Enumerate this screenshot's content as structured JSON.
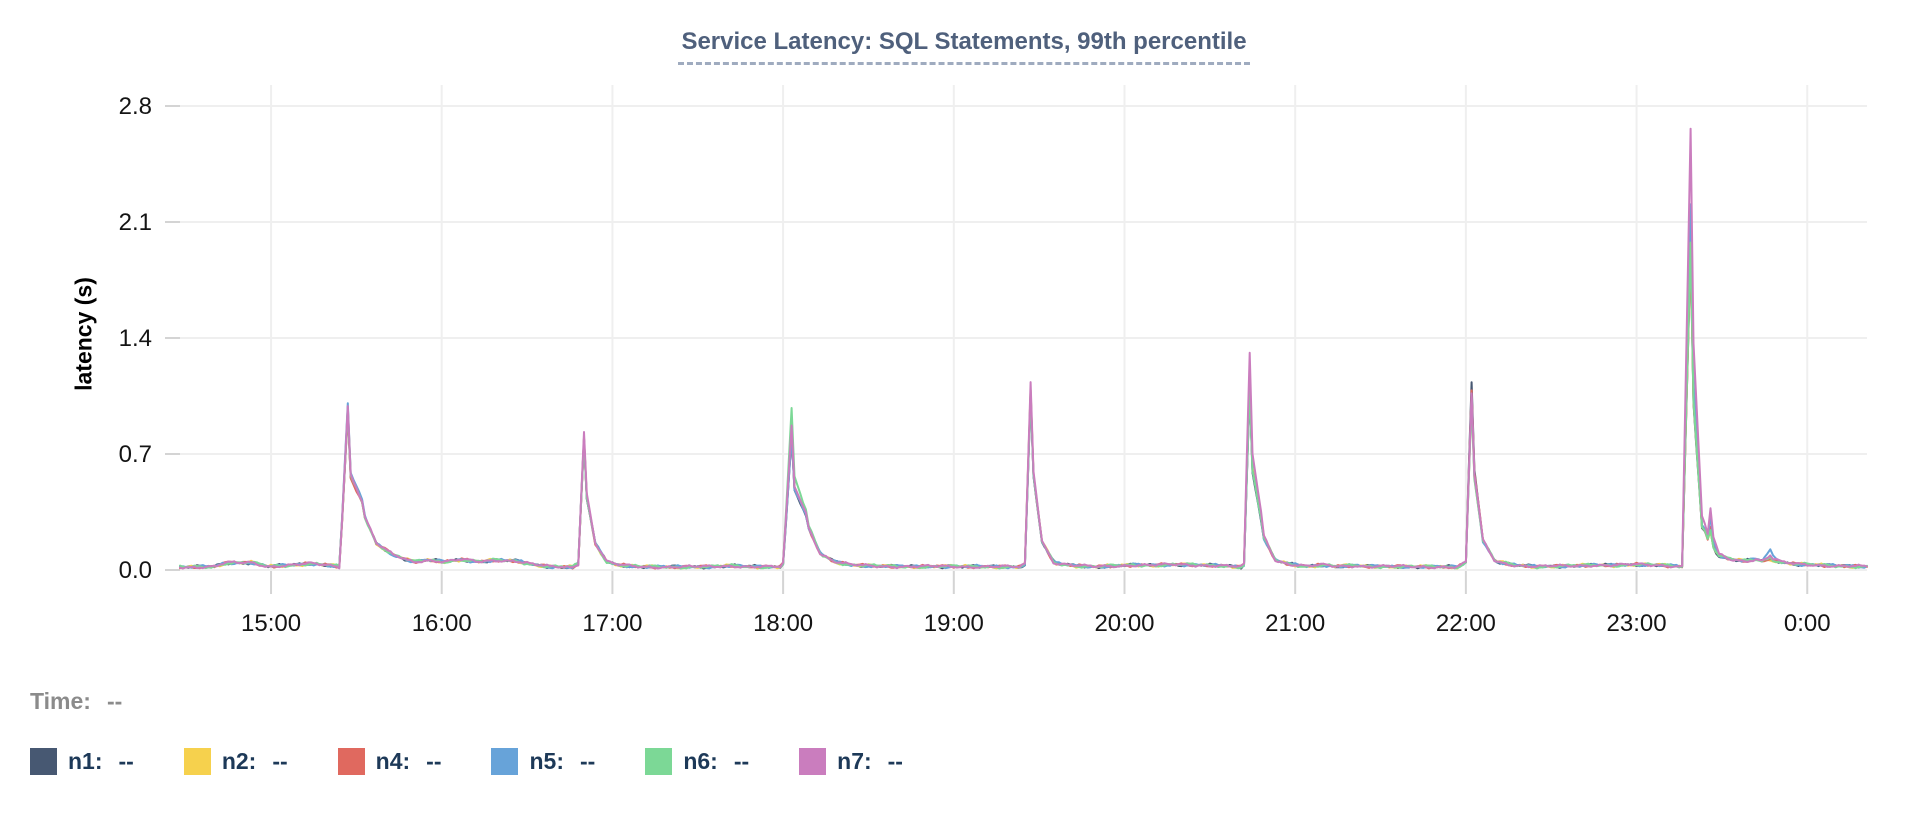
{
  "title": {
    "text": "Service Latency: SQL Statements, 99th percentile",
    "color": "#4f607c",
    "underline_color": "#9fabbf"
  },
  "legend": {
    "time_label": "Time:",
    "time_value": "--",
    "series_value_placeholder": "--",
    "label_color": "#1d3958",
    "time_color": "#8b8b8b"
  },
  "axis_style": {
    "grid_color": "#efefef",
    "tick_color": "#d4d4d4",
    "text_color": "#141414"
  },
  "chart_data": {
    "type": "line",
    "title": "Service Latency: SQL Statements, 99th percentile",
    "xlabel": "",
    "ylabel": "latency (s)",
    "ylim": [
      0,
      2.9
    ],
    "grid": true,
    "legend_position": "bottom",
    "x_domain_minutes": [
      868,
      1461
    ],
    "x_ticks": [
      {
        "minute": 900,
        "label": "15:00"
      },
      {
        "minute": 960,
        "label": "16:00"
      },
      {
        "minute": 1020,
        "label": "17:00"
      },
      {
        "minute": 1080,
        "label": "18:00"
      },
      {
        "minute": 1140,
        "label": "19:00"
      },
      {
        "minute": 1200,
        "label": "20:00"
      },
      {
        "minute": 1260,
        "label": "21:00"
      },
      {
        "minute": 1320,
        "label": "22:00"
      },
      {
        "minute": 1380,
        "label": "23:00"
      },
      {
        "minute": 1440,
        "label": "0:00"
      }
    ],
    "y_ticks": [
      {
        "value": 0.0,
        "label": "0.0"
      },
      {
        "value": 0.7,
        "label": "0.7"
      },
      {
        "value": 1.4,
        "label": "1.4"
      },
      {
        "value": 2.1,
        "label": "2.1"
      },
      {
        "value": 2.8,
        "label": "2.8"
      }
    ],
    "series": [
      {
        "name": "n1",
        "color": "#475872"
      },
      {
        "name": "n2",
        "color": "#f6d14d"
      },
      {
        "name": "n4",
        "color": "#e0695f"
      },
      {
        "name": "n5",
        "color": "#67a3d9"
      },
      {
        "name": "n6",
        "color": "#7cd896"
      },
      {
        "name": "n7",
        "color": "#ca7dbe"
      }
    ],
    "baseline_points": [
      [
        868,
        0.018
      ],
      [
        880,
        0.02
      ],
      [
        884,
        0.042
      ],
      [
        893,
        0.045
      ],
      [
        899,
        0.022
      ],
      [
        906,
        0.028
      ],
      [
        914,
        0.038
      ],
      [
        920,
        0.03
      ],
      [
        925,
        0.018
      ],
      [
        932,
        0.27
      ],
      [
        937,
        0.16
      ],
      [
        943,
        0.09
      ],
      [
        950,
        0.05
      ],
      [
        955,
        0.06
      ],
      [
        961,
        0.05
      ],
      [
        967,
        0.062
      ],
      [
        973,
        0.05
      ],
      [
        979,
        0.06
      ],
      [
        986,
        0.055
      ],
      [
        993,
        0.03
      ],
      [
        998,
        0.02
      ],
      [
        1006,
        0.018
      ],
      [
        1014,
        0.1
      ],
      [
        1018,
        0.05
      ],
      [
        1022,
        0.03
      ],
      [
        1030,
        0.02
      ],
      [
        1044,
        0.018
      ],
      [
        1055,
        0.02
      ],
      [
        1062,
        0.026
      ],
      [
        1068,
        0.02
      ],
      [
        1079,
        0.018
      ],
      [
        1088,
        0.22
      ],
      [
        1093,
        0.1
      ],
      [
        1098,
        0.05
      ],
      [
        1104,
        0.03
      ],
      [
        1112,
        0.025
      ],
      [
        1125,
        0.02
      ],
      [
        1140,
        0.022
      ],
      [
        1152,
        0.02
      ],
      [
        1163,
        0.018
      ],
      [
        1171,
        0.09
      ],
      [
        1176,
        0.04
      ],
      [
        1183,
        0.025
      ],
      [
        1190,
        0.02
      ],
      [
        1196,
        0.025
      ],
      [
        1203,
        0.03
      ],
      [
        1210,
        0.028
      ],
      [
        1218,
        0.033
      ],
      [
        1226,
        0.03
      ],
      [
        1234,
        0.026
      ],
      [
        1241,
        0.018
      ],
      [
        1248,
        0.12
      ],
      [
        1253,
        0.06
      ],
      [
        1258,
        0.035
      ],
      [
        1264,
        0.022
      ],
      [
        1270,
        0.03
      ],
      [
        1274,
        0.022
      ],
      [
        1281,
        0.027
      ],
      [
        1285,
        0.022
      ],
      [
        1300,
        0.02
      ],
      [
        1310,
        0.02
      ],
      [
        1317,
        0.018
      ],
      [
        1326,
        0.1
      ],
      [
        1331,
        0.05
      ],
      [
        1337,
        0.03
      ],
      [
        1345,
        0.02
      ],
      [
        1355,
        0.024
      ],
      [
        1365,
        0.03
      ],
      [
        1372,
        0.028
      ],
      [
        1380,
        0.033
      ],
      [
        1388,
        0.03
      ],
      [
        1394,
        0.024
      ],
      [
        1397,
        0.018
      ],
      [
        1404,
        0.12
      ],
      [
        1408,
        0.08
      ],
      [
        1413,
        0.065
      ],
      [
        1418,
        0.055
      ],
      [
        1422,
        0.065
      ],
      [
        1425,
        0.05
      ],
      [
        1430,
        0.045
      ],
      [
        1437,
        0.035
      ],
      [
        1444,
        0.03
      ],
      [
        1452,
        0.024
      ],
      [
        1461,
        0.02
      ]
    ],
    "spikes": [
      {
        "minute": 927,
        "rise": 3,
        "fall": 6,
        "peaks": {
          "n1": 0.87,
          "n2": 0.89,
          "n4": 0.86,
          "n5": 0.92,
          "n6": 0.88,
          "n7": 0.9
        }
      },
      {
        "minute": 1010,
        "rise": 2,
        "fall": 4,
        "peaks": {
          "n1": 0.72,
          "n2": 0.74,
          "n4": 0.73,
          "n5": 0.73,
          "n6": 0.74,
          "n7": 0.78
        }
      },
      {
        "minute": 1083,
        "rise": 3,
        "fall": 6,
        "peaks": {
          "n1": 0.7,
          "n2": 0.73,
          "n4": 0.72,
          "n5": 0.71,
          "n6": 0.86,
          "n7": 0.76
        }
      },
      {
        "minute": 1167,
        "rise": 2,
        "fall": 4,
        "peaks": {
          "n1": 1.0,
          "n2": 1.03,
          "n4": 1.02,
          "n5": 1.01,
          "n6": 1.02,
          "n7": 1.08
        }
      },
      {
        "minute": 1244,
        "rise": 2,
        "fall": 5,
        "peaks": {
          "n1": 1.02,
          "n2": 1.1,
          "n4": 1.06,
          "n5": 1.05,
          "n6": 1.04,
          "n7": 1.25
        }
      },
      {
        "minute": 1322,
        "rise": 2,
        "fall": 4,
        "peaks": {
          "n1": 1.07,
          "n2": 0.97,
          "n4": 1.02,
          "n5": 0.98,
          "n6": 0.96,
          "n7": 1.0
        }
      },
      {
        "minute": 1399,
        "rise": 3,
        "fall": 4,
        "peaks": {
          "n1": 1.88,
          "n2": 1.95,
          "n4": 1.9,
          "n5": 2.15,
          "n6": 1.93,
          "n7": 2.62
        }
      },
      {
        "minute": 1406,
        "rise": 1,
        "fall": 3,
        "peaks": {
          "n1": 0.1,
          "n2": 0.1,
          "n4": 0.12,
          "n5": 0.18,
          "n6": 0.1,
          "n7": 0.22
        }
      },
      {
        "minute": 1427,
        "rise": 3,
        "fall": 4,
        "peaks": {
          "n1": 0.02,
          "n2": 0.02,
          "n4": 0.02,
          "n5": 0.07,
          "n6": 0.03,
          "n7": 0.04
        }
      }
    ],
    "noise_amplitude": 0.0045
  }
}
